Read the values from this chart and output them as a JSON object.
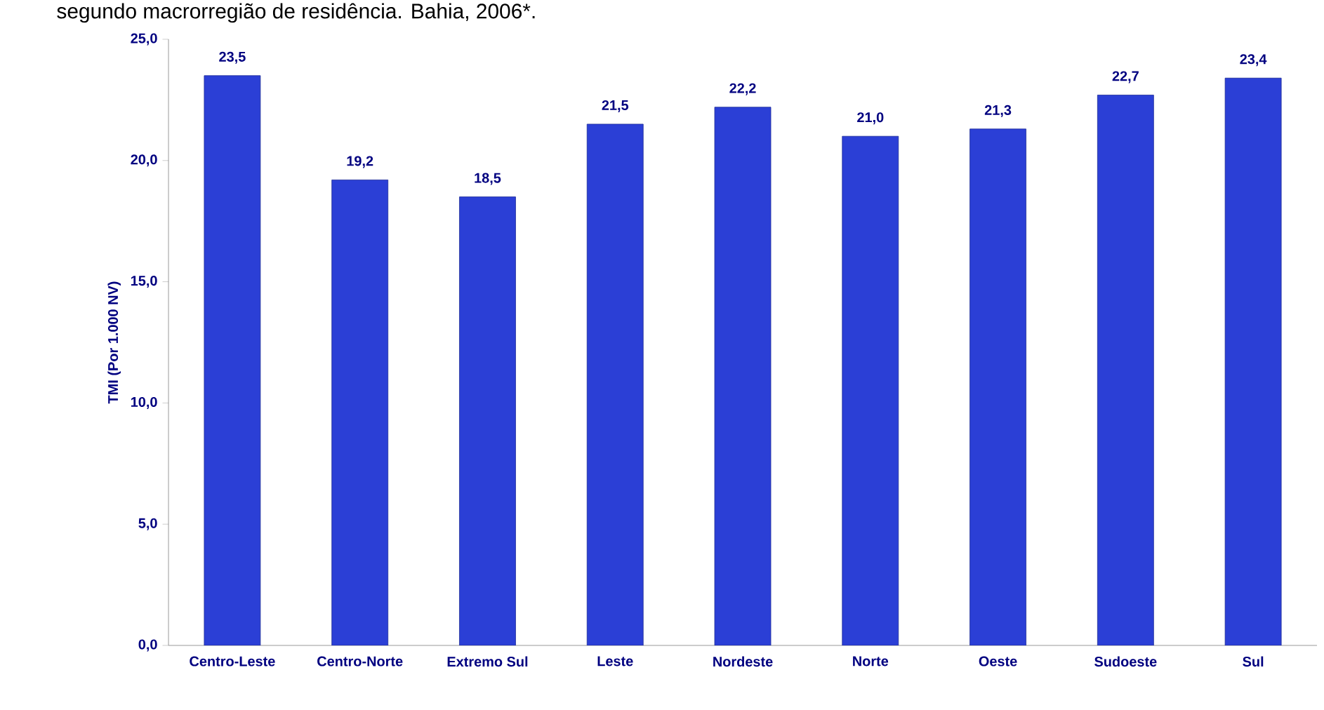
{
  "chart_data": {
    "type": "bar",
    "title": "segundo macrorregião de residência. Bahia, 2006*.",
    "ylabel": "TMI (Por 1.000 NV)",
    "categories": [
      "Centro-Leste",
      "Centro-Norte",
      "Extremo Sul",
      "Leste",
      "Nordeste",
      "Norte",
      "Oeste",
      "Sudoeste",
      "Sul"
    ],
    "values": [
      23.5,
      19.2,
      18.5,
      21.5,
      22.2,
      21.0,
      21.3,
      22.7,
      23.4
    ],
    "value_labels": [
      "23,5",
      "19,2",
      "18,5",
      "21,5",
      "22,2",
      "21,0",
      "21,3",
      "22,7",
      "23,4"
    ],
    "color": "#2b3fd6",
    "ylim": [
      0,
      25
    ],
    "yticks": [
      {
        "value": 0,
        "label": "0,0"
      },
      {
        "value": 5,
        "label": "5,0"
      },
      {
        "value": 10,
        "label": "10,0"
      },
      {
        "value": 15,
        "label": "15,0"
      },
      {
        "value": 20,
        "label": "20,0"
      },
      {
        "value": 25,
        "label": "25,0"
      }
    ],
    "grid": false
  }
}
